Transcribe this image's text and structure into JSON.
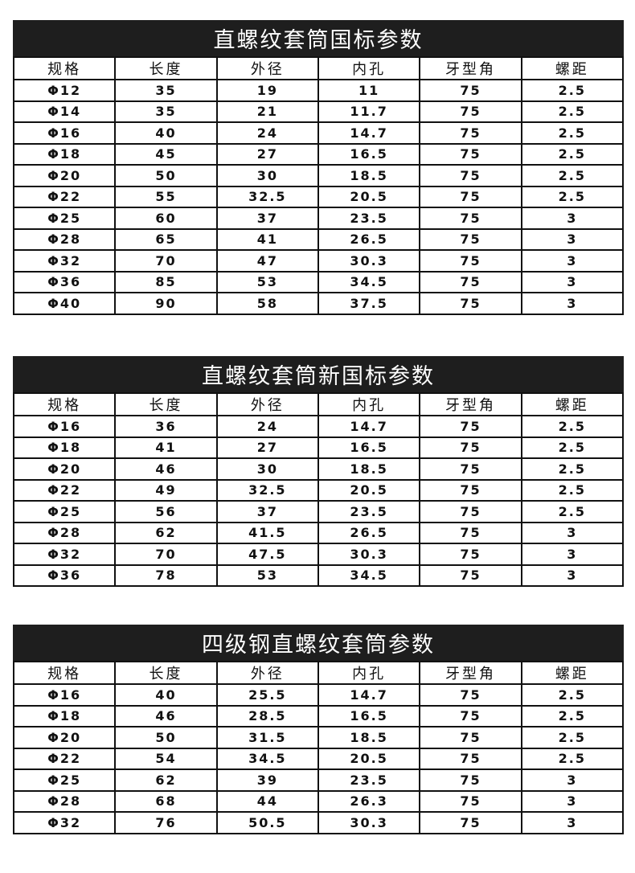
{
  "headers": [
    "规格",
    "长度",
    "外径",
    "内孔",
    "牙型角",
    "螺距"
  ],
  "tables": [
    {
      "title": "直螺纹套筒国标参数",
      "rows": [
        [
          "Φ12",
          "35",
          "19",
          "11",
          "75",
          "2.5"
        ],
        [
          "Φ14",
          "35",
          "21",
          "11.7",
          "75",
          "2.5"
        ],
        [
          "Φ16",
          "40",
          "24",
          "14.7",
          "75",
          "2.5"
        ],
        [
          "Φ18",
          "45",
          "27",
          "16.5",
          "75",
          "2.5"
        ],
        [
          "Φ20",
          "50",
          "30",
          "18.5",
          "75",
          "2.5"
        ],
        [
          "Φ22",
          "55",
          "32.5",
          "20.5",
          "75",
          "2.5"
        ],
        [
          "Φ25",
          "60",
          "37",
          "23.5",
          "75",
          "3"
        ],
        [
          "Φ28",
          "65",
          "41",
          "26.5",
          "75",
          "3"
        ],
        [
          "Φ32",
          "70",
          "47",
          "30.3",
          "75",
          "3"
        ],
        [
          "Φ36",
          "85",
          "53",
          "34.5",
          "75",
          "3"
        ],
        [
          "Φ40",
          "90",
          "58",
          "37.5",
          "75",
          "3"
        ]
      ]
    },
    {
      "title": "直螺纹套筒新国标参数",
      "rows": [
        [
          "Φ16",
          "36",
          "24",
          "14.7",
          "75",
          "2.5"
        ],
        [
          "Φ18",
          "41",
          "27",
          "16.5",
          "75",
          "2.5"
        ],
        [
          "Φ20",
          "46",
          "30",
          "18.5",
          "75",
          "2.5"
        ],
        [
          "Φ22",
          "49",
          "32.5",
          "20.5",
          "75",
          "2.5"
        ],
        [
          "Φ25",
          "56",
          "37",
          "23.5",
          "75",
          "2.5"
        ],
        [
          "Φ28",
          "62",
          "41.5",
          "26.5",
          "75",
          "3"
        ],
        [
          "Φ32",
          "70",
          "47.5",
          "30.3",
          "75",
          "3"
        ],
        [
          "Φ36",
          "78",
          "53",
          "34.5",
          "75",
          "3"
        ]
      ]
    },
    {
      "title": "四级钢直螺纹套筒参数",
      "rows": [
        [
          "Φ16",
          "40",
          "25.5",
          "14.7",
          "75",
          "2.5"
        ],
        [
          "Φ18",
          "46",
          "28.5",
          "16.5",
          "75",
          "2.5"
        ],
        [
          "Φ20",
          "50",
          "31.5",
          "18.5",
          "75",
          "2.5"
        ],
        [
          "Φ22",
          "54",
          "34.5",
          "20.5",
          "75",
          "2.5"
        ],
        [
          "Φ25",
          "62",
          "39",
          "23.5",
          "75",
          "3"
        ],
        [
          "Φ28",
          "68",
          "44",
          "26.3",
          "75",
          "3"
        ],
        [
          "Φ32",
          "76",
          "50.5",
          "30.3",
          "75",
          "3"
        ]
      ]
    }
  ]
}
